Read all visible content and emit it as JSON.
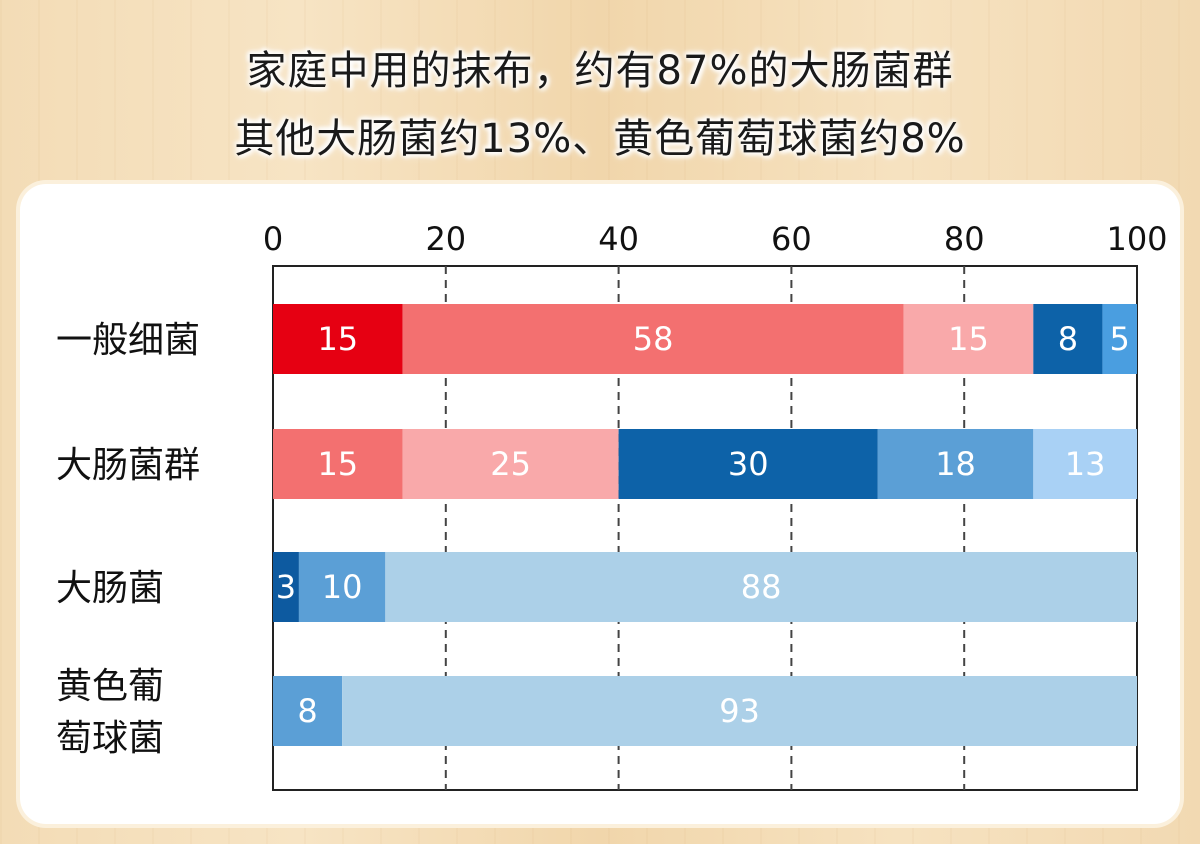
{
  "header": {
    "line1": "家庭中用的抹布，约有87%的大肠菌群",
    "line2": "其他大肠菌约13%、黄色葡萄球菌约8%"
  },
  "chart_data": {
    "type": "bar",
    "orientation": "horizontal",
    "stacked": true,
    "xlim": [
      0,
      100
    ],
    "xticks": [
      0,
      20,
      40,
      60,
      80,
      100
    ],
    "grid": "vertical-dashed",
    "rows": [
      {
        "label_lines": [
          "一般细菌"
        ],
        "segments": [
          {
            "value": 15,
            "color": "#e60012"
          },
          {
            "value": 58,
            "color": "#f37070"
          },
          {
            "value": 15,
            "color": "#f9a9aa"
          },
          {
            "value": 8,
            "color": "#0d62a8"
          },
          {
            "value": 5,
            "color": "#4a9ee0"
          }
        ]
      },
      {
        "label_lines": [
          "大肠菌群"
        ],
        "segments": [
          {
            "value": 15,
            "color": "#f37070"
          },
          {
            "value": 25,
            "color": "#f9a9aa"
          },
          {
            "value": 30,
            "color": "#0d62a8"
          },
          {
            "value": 18,
            "color": "#5b9fd6"
          },
          {
            "value": 13,
            "color": "#a9d1f5"
          }
        ]
      },
      {
        "label_lines": [
          "大肠菌"
        ],
        "segments": [
          {
            "value": 3,
            "color": "#0d5aa0"
          },
          {
            "value": 10,
            "color": "#5b9fd6"
          },
          {
            "value": 88,
            "color": "#acd0e8"
          }
        ]
      },
      {
        "label_lines": [
          "黄色葡",
          "萄球菌"
        ],
        "segments": [
          {
            "value": 8,
            "color": "#5b9fd6"
          },
          {
            "value": 93,
            "color": "#acd0e8"
          }
        ]
      }
    ]
  }
}
